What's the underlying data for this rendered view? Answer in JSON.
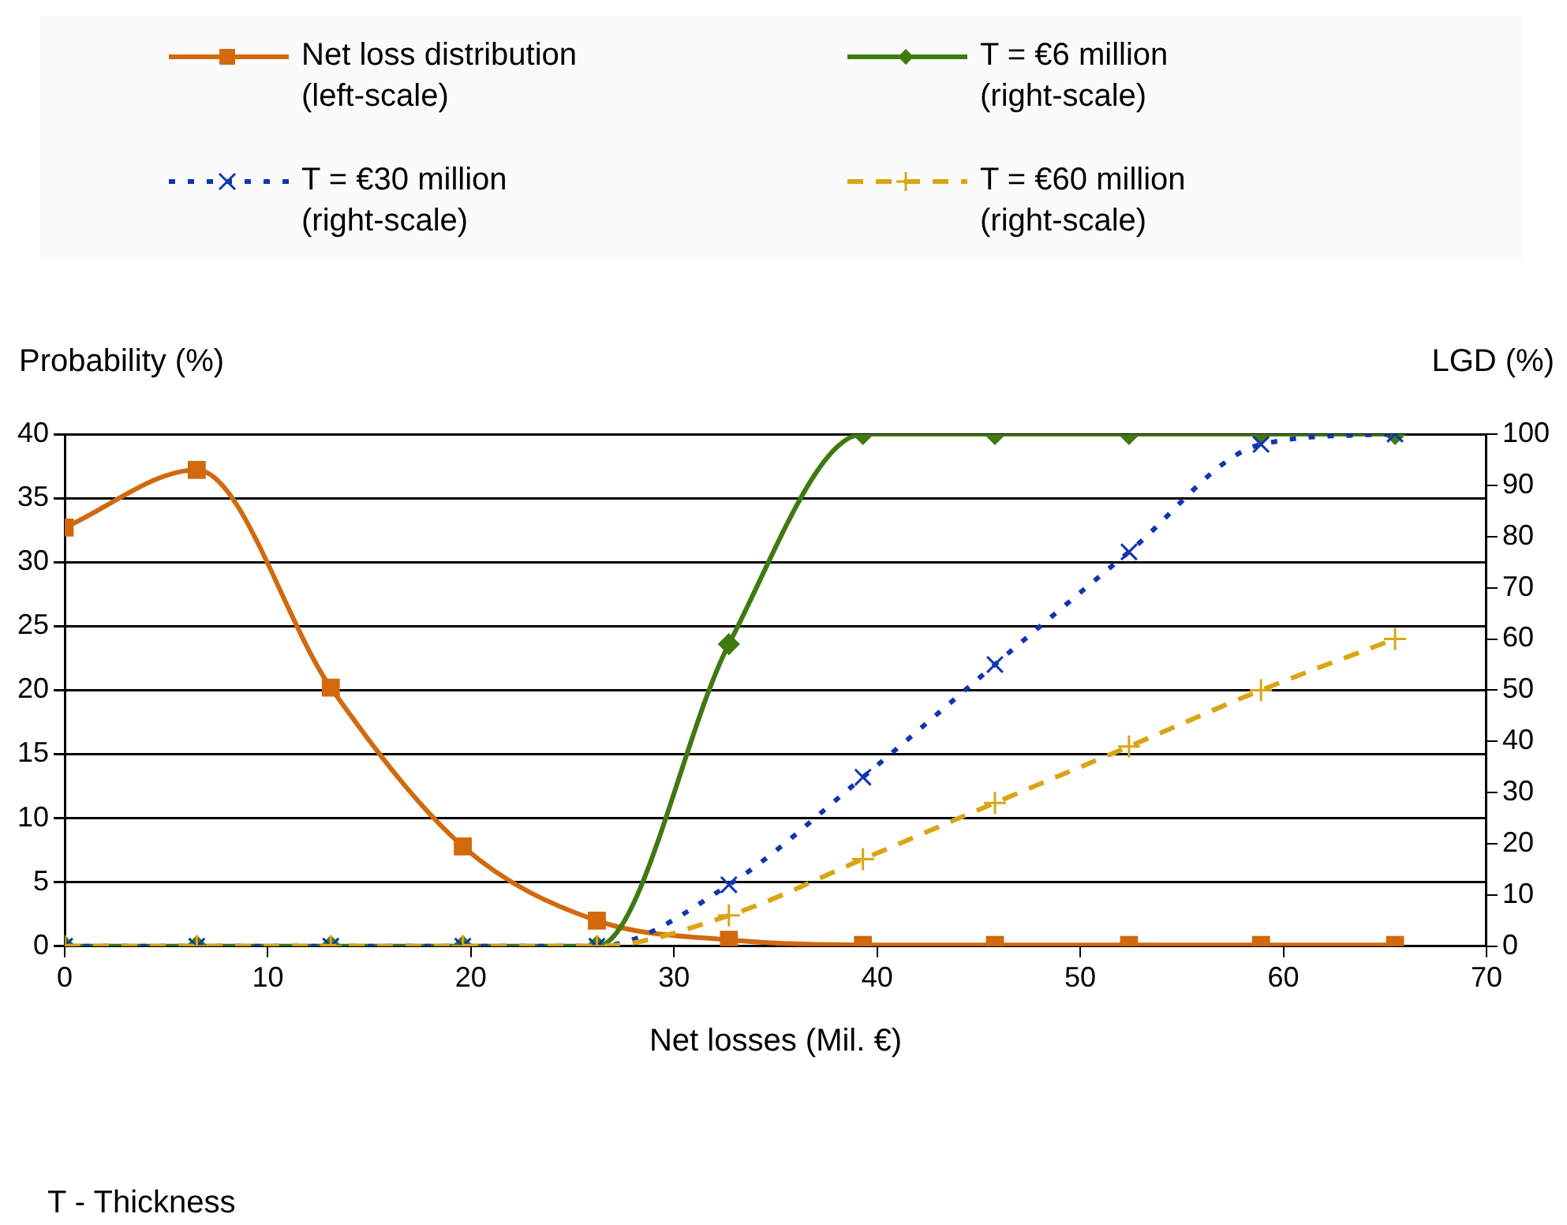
{
  "chart_data": {
    "type": "line",
    "xlabel": "Net losses (Mil. €)",
    "ylabel": "Probability (%)",
    "y2label": "LGD (%)",
    "annotations": [
      "T - Thickness"
    ],
    "x": [
      0,
      6.5,
      13.1,
      19.6,
      26.2,
      32.7,
      39.3,
      45.8,
      52.4,
      58.9,
      65.5
    ],
    "xlim": [
      0,
      70
    ],
    "xticks": [
      0,
      10,
      20,
      30,
      40,
      50,
      60,
      70
    ],
    "ylim": [
      0,
      40
    ],
    "yticks": [
      0,
      5,
      10,
      15,
      20,
      25,
      30,
      35,
      40
    ],
    "y2lim": [
      0,
      100
    ],
    "y2ticks": [
      0,
      10,
      20,
      30,
      40,
      50,
      60,
      70,
      80,
      90,
      100
    ],
    "grid": "y",
    "legend": "top",
    "series": [
      {
        "name": "Net loss distribution (left-scale)",
        "color": "#d2690e",
        "marker": "square",
        "line_style": "solid",
        "values": [
          32.7,
          37.2,
          20.2,
          7.8,
          2.0,
          0.5,
          0.1,
          0.1,
          0.1,
          0.1,
          0.1
        ]
      },
      {
        "name": "T = €6 million (right-scale)",
        "color": "#3f7a10",
        "marker": "diamond",
        "line_style": "solid",
        "axis": "y2",
        "values": [
          0,
          0,
          0,
          0,
          0,
          59,
          100,
          100,
          100,
          100,
          100
        ]
      },
      {
        "name": "T = €30 million (right-scale)",
        "color": "#1035b0",
        "marker": "cross",
        "line_style": "dotted",
        "axis": "y2",
        "values": [
          0,
          0,
          0,
          0,
          0,
          12,
          33,
          55,
          77,
          98,
          100
        ]
      },
      {
        "name": "T = €60 million (right-scale)",
        "color": "#d9a514",
        "marker": "plus",
        "line_style": "dashed",
        "axis": "y2",
        "values": [
          0,
          0,
          0,
          0,
          0,
          6,
          17,
          28,
          39,
          50,
          60
        ]
      }
    ]
  }
}
